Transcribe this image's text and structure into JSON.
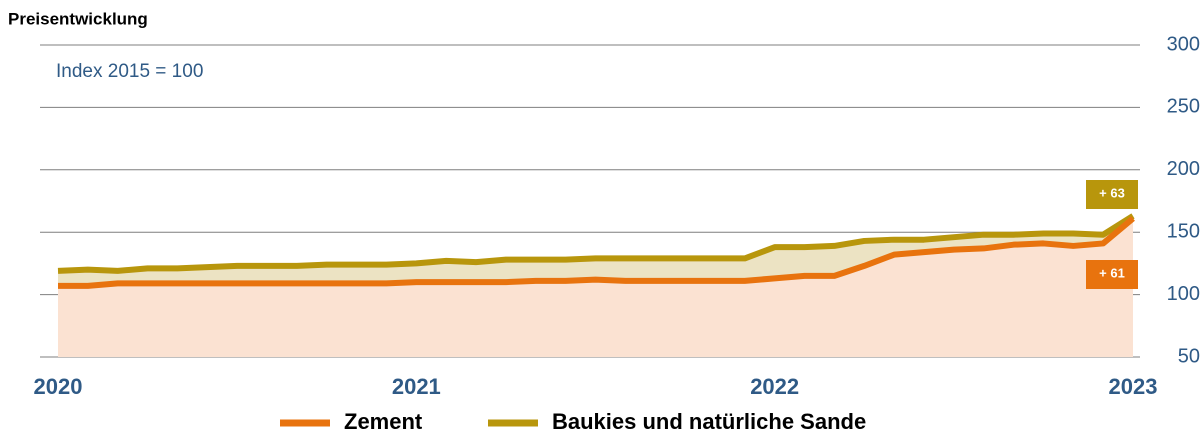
{
  "chart_data": {
    "type": "line",
    "title": "Preisentwicklung",
    "subtitle": "Index 2015 = 100",
    "categories": [
      "2020",
      null,
      null,
      null,
      null,
      null,
      null,
      null,
      null,
      null,
      null,
      null,
      "2021",
      null,
      null,
      null,
      null,
      null,
      null,
      null,
      null,
      null,
      null,
      null,
      "2022",
      null,
      null,
      null,
      null,
      null,
      null,
      null,
      null,
      null,
      null,
      null,
      "2023"
    ],
    "series": [
      {
        "name": "Baukies und natürliche Sande",
        "color": "#b8960c",
        "fill": "#ece3c3",
        "values": [
          119,
          120,
          119,
          121,
          121,
          122,
          123,
          123,
          123,
          124,
          124,
          124,
          125,
          127,
          126,
          128,
          128,
          128,
          129,
          129,
          129,
          129,
          129,
          129,
          138,
          138,
          139,
          143,
          144,
          144,
          146,
          148,
          148,
          149,
          149,
          148,
          163
        ]
      },
      {
        "name": "Zement",
        "color": "#e8730e",
        "fill": "#fbe2d2",
        "values": [
          107,
          107,
          109,
          109,
          109,
          109,
          109,
          109,
          109,
          109,
          109,
          109,
          110,
          110,
          110,
          110,
          111,
          111,
          112,
          111,
          111,
          111,
          111,
          111,
          113,
          115,
          115,
          123,
          132,
          134,
          136,
          137,
          140,
          141,
          139,
          141,
          161
        ]
      }
    ],
    "area": true,
    "ylim": [
      50,
      300
    ],
    "yticks": [
      50,
      100,
      150,
      200,
      250,
      300
    ],
    "grid": true,
    "legend": "bottom",
    "annotations": [
      {
        "text": "+ 63",
        "color": "#b8960c"
      },
      {
        "text": "+ 61",
        "color": "#e8730e"
      }
    ]
  }
}
